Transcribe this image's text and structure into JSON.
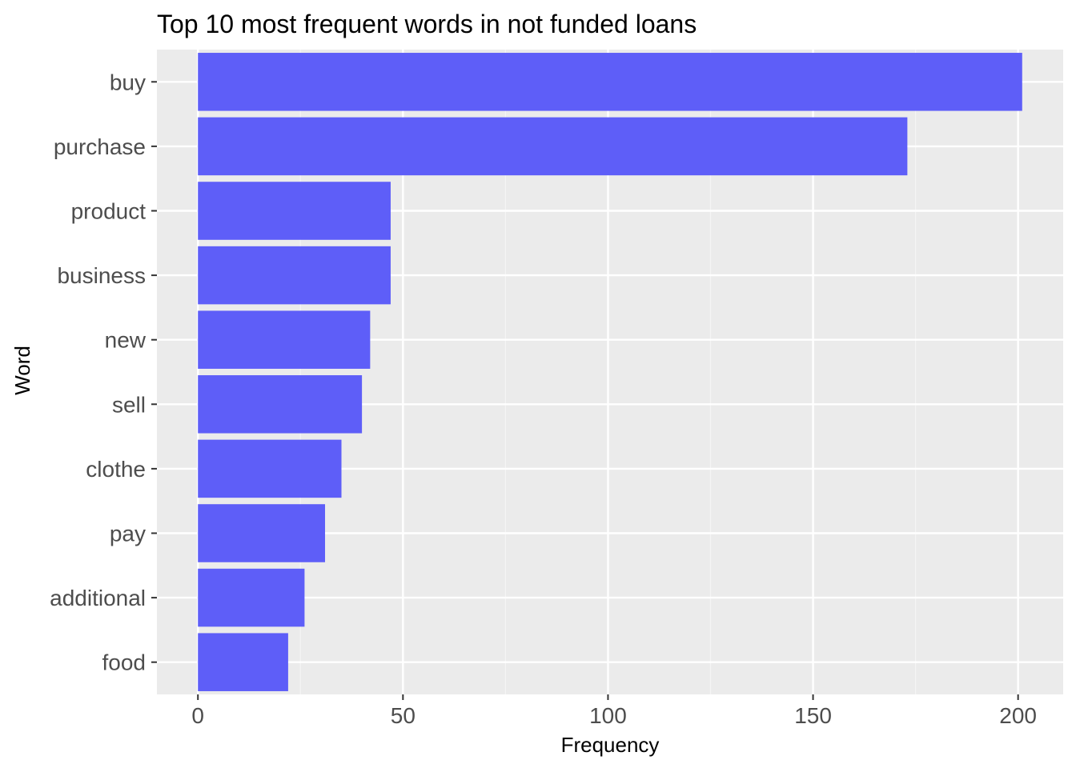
{
  "chart_data": {
    "type": "bar",
    "orientation": "horizontal",
    "title": "Top 10 most frequent words in not funded loans",
    "xlabel": "Frequency",
    "ylabel": "Word",
    "categories": [
      "buy",
      "purchase",
      "product",
      "business",
      "new",
      "sell",
      "clothe",
      "pay",
      "additional",
      "food"
    ],
    "values": [
      201,
      173,
      47,
      47,
      42,
      40,
      35,
      31,
      26,
      22
    ],
    "xlim": [
      -10,
      211
    ],
    "xticks": [
      0,
      50,
      100,
      150,
      200
    ],
    "xtick_labels": [
      "0",
      "50",
      "100",
      "150",
      "200"
    ],
    "grid": true,
    "legend": "none",
    "colors": {
      "bar": "#5e5ef8",
      "panel": "#ebebeb",
      "grid_major": "#ffffff",
      "grid_minor": "#f4f4f4",
      "tick": "#333333"
    }
  }
}
